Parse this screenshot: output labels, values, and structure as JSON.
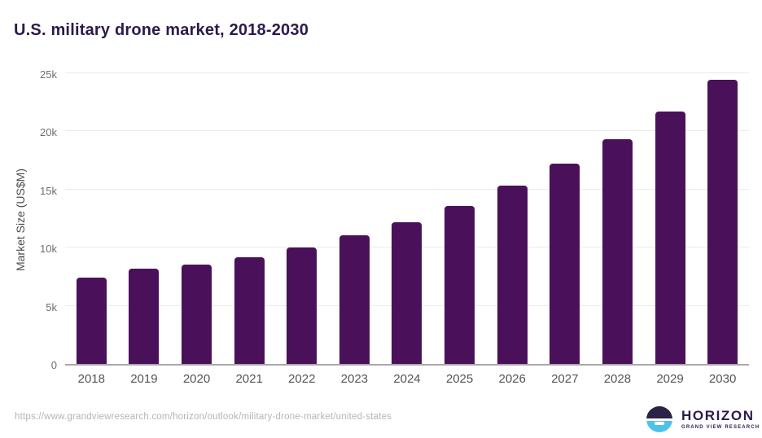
{
  "title": "U.S. military drone market, 2018-2030",
  "chart_data": {
    "type": "bar",
    "categories": [
      "2018",
      "2019",
      "2020",
      "2021",
      "2022",
      "2023",
      "2024",
      "2025",
      "2026",
      "2027",
      "2028",
      "2029",
      "2030"
    ],
    "values": [
      7500,
      8250,
      8600,
      9200,
      10050,
      11150,
      12250,
      13650,
      15400,
      17300,
      19450,
      21850,
      24600
    ],
    "title": "U.S. military drone market, 2018-2030",
    "xlabel": "",
    "ylabel": "Market Size (US$M)",
    "ylim": [
      0,
      25000
    ],
    "y_ticks": [
      {
        "value": 0,
        "label": "0"
      },
      {
        "value": 5000,
        "label": "5k"
      },
      {
        "value": 10000,
        "label": "10k"
      },
      {
        "value": 15000,
        "label": "15k"
      },
      {
        "value": 20000,
        "label": "20k"
      },
      {
        "value": 25000,
        "label": "25k"
      }
    ],
    "grid": true,
    "legend": false,
    "bar_color": "#4a115a"
  },
  "footer": {
    "source_url": "https://www.grandviewresearch.com/horizon/outlook/military-drone-market/united-states",
    "logo": {
      "name": "HORIZON",
      "subtext": "GRAND VIEW RESEARCH"
    }
  },
  "colors": {
    "title": "#2c1a4d",
    "bar": "#4a115a",
    "x_tick_label": "#545454",
    "y_tick_label": "#6e6e6e",
    "gridline": "#ebebeb",
    "source_text": "#b4b4b4",
    "logo_dark": "#2c2147",
    "logo_blue": "#4ec3e9"
  }
}
